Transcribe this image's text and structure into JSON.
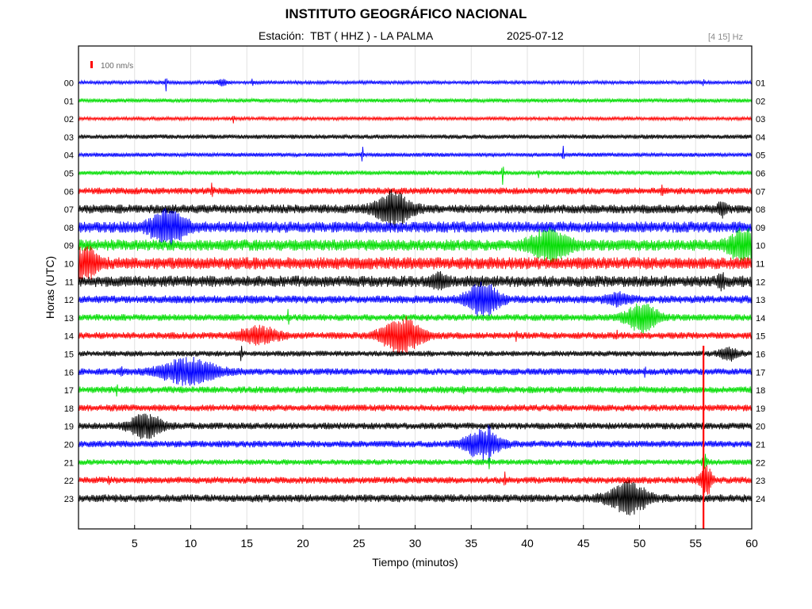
{
  "header": {
    "title": "INSTITUTO GEOGRÁFICO NACIONAL",
    "station_label": "Estación:  TBT ( HHZ ) - LA PALMA",
    "date": "2025-07-12",
    "filter": "[4 15] Hz"
  },
  "chart_data": {
    "type": "line",
    "title": "INSTITUTO GEOGRÁFICO NACIONAL",
    "xlabel": "Tiempo (minutos)",
    "ylabel": "Horas (UTC)",
    "xlim": [
      0,
      60
    ],
    "x_ticks": [
      "5",
      "10",
      "15",
      "20",
      "25",
      "30",
      "35",
      "40",
      "45",
      "50",
      "55",
      "60"
    ],
    "grid": true,
    "scale_label": "100 nm/s",
    "trace_colors": [
      "#0000ff",
      "#00dd00",
      "#ff0000",
      "#000000"
    ],
    "traces": [
      {
        "left": "00",
        "right": "01",
        "noise": 0.15,
        "events": [
          {
            "t": 7.8,
            "a": 1.0,
            "w": 0.1
          },
          {
            "t": 12.8,
            "a": 0.4,
            "w": 0.6
          },
          {
            "t": 15.5,
            "a": 0.4,
            "w": 0.1
          },
          {
            "t": 55.7,
            "a": 0.5,
            "w": 0.1
          }
        ]
      },
      {
        "left": "01",
        "right": "02",
        "noise": 0.18,
        "events": []
      },
      {
        "left": "02",
        "right": "03",
        "noise": 0.15,
        "events": [
          {
            "t": 13.8,
            "a": 0.5,
            "w": 0.1
          }
        ]
      },
      {
        "left": "03",
        "right": "04",
        "noise": 0.2,
        "events": []
      },
      {
        "left": "04",
        "right": "05",
        "noise": 0.18,
        "events": [
          {
            "t": 25.3,
            "a": 1.3,
            "w": 0.1
          },
          {
            "t": 43.2,
            "a": 0.9,
            "w": 0.1
          }
        ]
      },
      {
        "left": "05",
        "right": "06",
        "noise": 0.2,
        "events": [
          {
            "t": 37.8,
            "a": 1.4,
            "w": 0.1
          },
          {
            "t": 41.0,
            "a": 0.6,
            "w": 0.1
          }
        ]
      },
      {
        "left": "06",
        "right": "07",
        "noise": 0.3,
        "events": [
          {
            "t": 11.9,
            "a": 1.0,
            "w": 0.1
          },
          {
            "t": 52.0,
            "a": 1.0,
            "w": 0.1
          }
        ]
      },
      {
        "left": "07",
        "right": "08",
        "noise": 0.4,
        "events": [
          {
            "t": 28.0,
            "a": 2.0,
            "w": 2.2
          },
          {
            "t": 57.3,
            "a": 0.8,
            "w": 0.5
          }
        ]
      },
      {
        "left": "08",
        "right": "09",
        "noise": 0.5,
        "events": [
          {
            "t": 8.0,
            "a": 2.0,
            "w": 2.2
          }
        ]
      },
      {
        "left": "09",
        "right": "10",
        "noise": 0.5,
        "events": [
          {
            "t": 42.0,
            "a": 1.8,
            "w": 2.4
          },
          {
            "t": 59.2,
            "a": 1.8,
            "w": 1.8
          }
        ]
      },
      {
        "left": "10",
        "right": "11",
        "noise": 0.55,
        "events": [
          {
            "t": 0.7,
            "a": 1.9,
            "w": 1.4
          }
        ]
      },
      {
        "left": "11",
        "right": "12",
        "noise": 0.5,
        "events": [
          {
            "t": 32.0,
            "a": 0.8,
            "w": 1.0
          },
          {
            "t": 57.3,
            "a": 0.8,
            "w": 0.4
          }
        ]
      },
      {
        "left": "12",
        "right": "13",
        "noise": 0.35,
        "events": [
          {
            "t": 36.0,
            "a": 2.0,
            "w": 2.0
          },
          {
            "t": 48.0,
            "a": 0.6,
            "w": 1.5
          }
        ]
      },
      {
        "left": "13",
        "right": "14",
        "noise": 0.3,
        "events": [
          {
            "t": 18.7,
            "a": 1.0,
            "w": 0.1
          },
          {
            "t": 50.2,
            "a": 1.7,
            "w": 2.0
          }
        ]
      },
      {
        "left": "14",
        "right": "15",
        "noise": 0.3,
        "events": [
          {
            "t": 16.0,
            "a": 1.0,
            "w": 2.5
          },
          {
            "t": 28.8,
            "a": 2.2,
            "w": 2.5
          },
          {
            "t": 39.0,
            "a": 0.6,
            "w": 0.1
          },
          {
            "t": 48.0,
            "a": 0.5,
            "w": 0.1
          }
        ]
      },
      {
        "left": "15",
        "right": "16",
        "noise": 0.25,
        "events": [
          {
            "t": 14.5,
            "a": 1.6,
            "w": 0.1
          },
          {
            "t": 58.0,
            "a": 0.7,
            "w": 1.2
          }
        ]
      },
      {
        "left": "16",
        "right": "17",
        "noise": 0.3,
        "events": [
          {
            "t": 3.8,
            "a": 0.6,
            "w": 0.2
          },
          {
            "t": 9.8,
            "a": 1.6,
            "w": 3.5
          },
          {
            "t": 50.5,
            "a": 0.6,
            "w": 0.1
          }
        ]
      },
      {
        "left": "17",
        "right": "18",
        "noise": 0.3,
        "events": [
          {
            "t": 3.4,
            "a": 0.9,
            "w": 0.1
          },
          {
            "t": 34.3,
            "a": 0.5,
            "w": 0.1
          }
        ]
      },
      {
        "left": "18",
        "right": "19",
        "noise": 0.3,
        "events": []
      },
      {
        "left": "19",
        "right": "20",
        "noise": 0.3,
        "events": [
          {
            "t": 6.0,
            "a": 1.5,
            "w": 2.0
          }
        ]
      },
      {
        "left": "20",
        "right": "21",
        "noise": 0.3,
        "events": [
          {
            "t": 36.0,
            "a": 1.7,
            "w": 2.2
          },
          {
            "t": 36.6,
            "a": 1.6,
            "w": 0.1
          }
        ]
      },
      {
        "left": "21",
        "right": "22",
        "noise": 0.25,
        "events": [
          {
            "t": 36.6,
            "a": 0.8,
            "w": 0.1
          },
          {
            "t": 55.8,
            "a": 0.9,
            "w": 0.3
          }
        ]
      },
      {
        "left": "22",
        "right": "23",
        "noise": 0.3,
        "events": [
          {
            "t": 2.7,
            "a": 0.4,
            "w": 0.1
          },
          {
            "t": 38.0,
            "a": 1.2,
            "w": 0.1
          },
          {
            "t": 55.9,
            "a": 2.0,
            "w": 0.7
          }
        ]
      },
      {
        "left": "23",
        "right": "24",
        "noise": 0.35,
        "events": [
          {
            "t": 49.0,
            "a": 1.8,
            "w": 2.5
          }
        ]
      }
    ],
    "spike": {
      "t": 55.7,
      "from_trace": 15,
      "to_trace": 23.5,
      "color": "#ff0000"
    }
  }
}
